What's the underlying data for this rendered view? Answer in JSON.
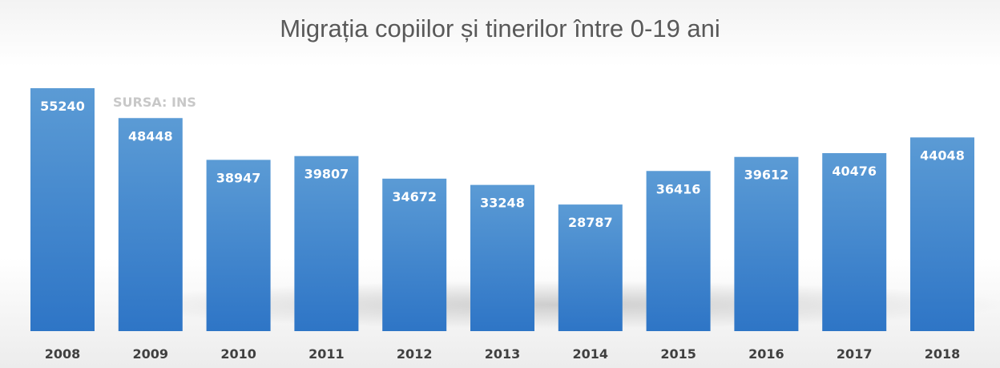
{
  "chart_data": {
    "type": "bar",
    "title": "Migrația copiilor și tinerilor între 0-19 ani",
    "annotation": "SURSA: INS",
    "categories": [
      "2008",
      "2009",
      "2010",
      "2011",
      "2012",
      "2013",
      "2014",
      "2015",
      "2016",
      "2017",
      "2018"
    ],
    "values": [
      55240,
      48448,
      38947,
      39807,
      34672,
      33248,
      28787,
      36416,
      39612,
      40476,
      44048
    ],
    "ylim": [
      0,
      55240
    ],
    "grid": false,
    "legend": "none",
    "colors": {
      "bar_top": "#5b9bd5",
      "bar_bottom": "#2e75c6",
      "value_label": "#ffffff",
      "category_label": "#404040",
      "title": "#595959",
      "annotation": "#c8c8c8"
    }
  }
}
